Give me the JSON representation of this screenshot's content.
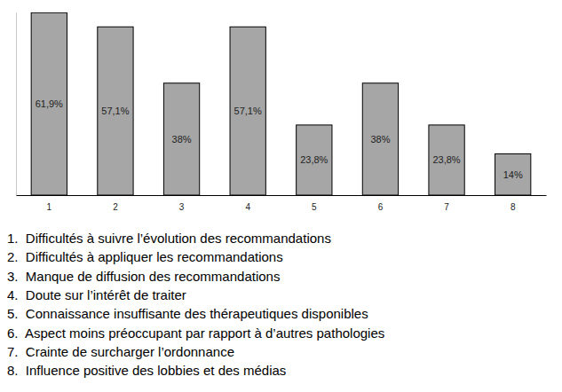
{
  "chart_data": {
    "type": "bar",
    "categories": [
      "1",
      "2",
      "3",
      "4",
      "5",
      "6",
      "7",
      "8"
    ],
    "values": [
      61.9,
      57.1,
      38,
      57.1,
      23.8,
      38,
      23.8,
      14
    ],
    "value_labels": [
      "61,9%",
      "57,1%",
      "38%",
      "57,1%",
      "23,8%",
      "38%",
      "23,8%",
      "14%"
    ],
    "color": "#a6a6a6",
    "ylim": [
      0,
      62
    ],
    "yticks": [],
    "grid": false,
    "data_labels": true,
    "tick_labels": "x",
    "annotations": [
      "1.  Difficultés à suivre l’évolution des recommandations",
      "2.  Difficultés à appliquer les recommandations",
      "3.  Manque de diffusion des recommandations",
      "4.  Doute sur l’intérêt de traiter",
      "5.  Connaissance insuffisante des thérapeutiques disponibles",
      "6.  Aspect moins préoccupant par rapport à d’autres pathologies",
      "7.  Crainte de surcharger l’ordonnance",
      "8.  Influence positive des lobbies et des médias"
    ]
  }
}
